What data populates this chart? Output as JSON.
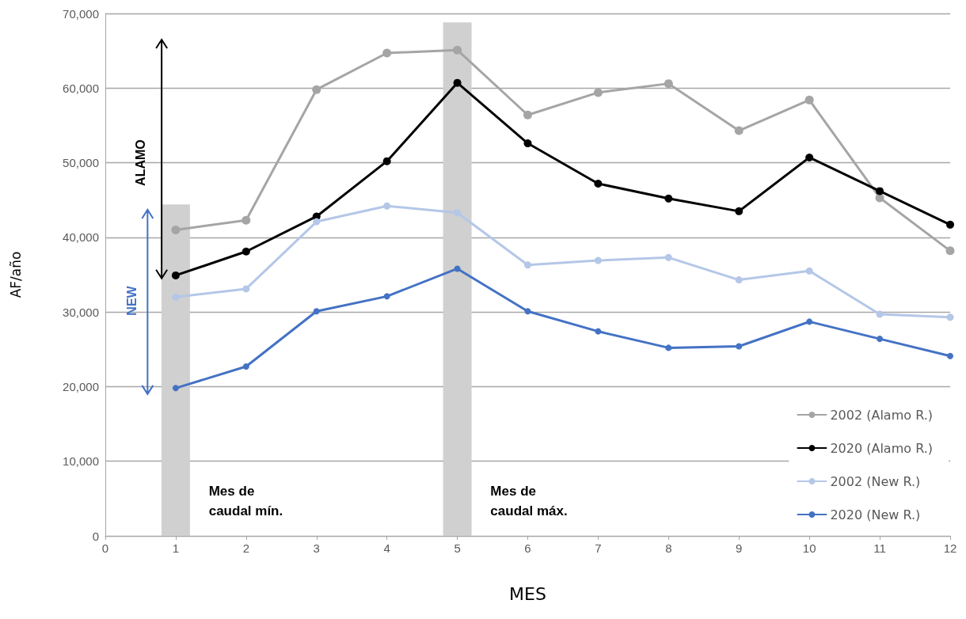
{
  "chart_data": {
    "type": "line",
    "xlabel": "MES",
    "ylabel": "AF/año",
    "x": [
      1,
      2,
      3,
      4,
      5,
      6,
      7,
      8,
      9,
      10,
      11,
      12
    ],
    "series": [
      {
        "type": "bar",
        "x": [
          1,
          5
        ],
        "values": [
          44400,
          68800
        ],
        "color": "#d0d0d0"
      },
      {
        "name": "2002 (Alamo R.)",
        "color": "#a5a5a5",
        "values": [
          41000,
          42300,
          59800,
          64700,
          65100,
          56400,
          59400,
          60600,
          54300,
          58400,
          45300,
          38200
        ]
      },
      {
        "name": "2020 (Alamo R.)",
        "color": "#000000",
        "values": [
          34900,
          38100,
          42800,
          50200,
          60700,
          52600,
          47200,
          45200,
          43500,
          50700,
          46200,
          41700
        ]
      },
      {
        "name": "2002 (New R.)",
        "color": "#b4c7e7",
        "values": [
          32000,
          33100,
          42100,
          44200,
          43300,
          36300,
          36900,
          37300,
          34300,
          35500,
          29700,
          29300
        ]
      },
      {
        "name": "2020 (New R.)",
        "color": "#4472c4",
        "values": [
          19800,
          22700,
          30100,
          32100,
          35800,
          30100,
          27400,
          25200,
          25400,
          28700,
          26400,
          24100
        ]
      }
    ],
    "xlim": [
      0,
      12
    ],
    "xticks": [
      0,
      1,
      2,
      3,
      4,
      5,
      6,
      7,
      8,
      9,
      10,
      11,
      12
    ],
    "ylim": [
      0,
      70000
    ],
    "yticks": [
      {
        "value": 0,
        "label": "0"
      },
      {
        "value": 10000,
        "label": "10,000"
      },
      {
        "value": 20000,
        "label": "20,000"
      },
      {
        "value": 30000,
        "label": "30,000"
      },
      {
        "value": 40000,
        "label": "40,000"
      },
      {
        "value": 50000,
        "label": "50,000"
      },
      {
        "value": 60000,
        "label": "60,000"
      },
      {
        "value": 70000,
        "label": "70,000"
      }
    ],
    "annotations": [
      "ALAMO",
      "NEW",
      "Mes de\ncaudal mín.",
      "Mes de\ncaudal máx."
    ],
    "grid": "y",
    "legend": "bottom right",
    "marker": "circle"
  }
}
